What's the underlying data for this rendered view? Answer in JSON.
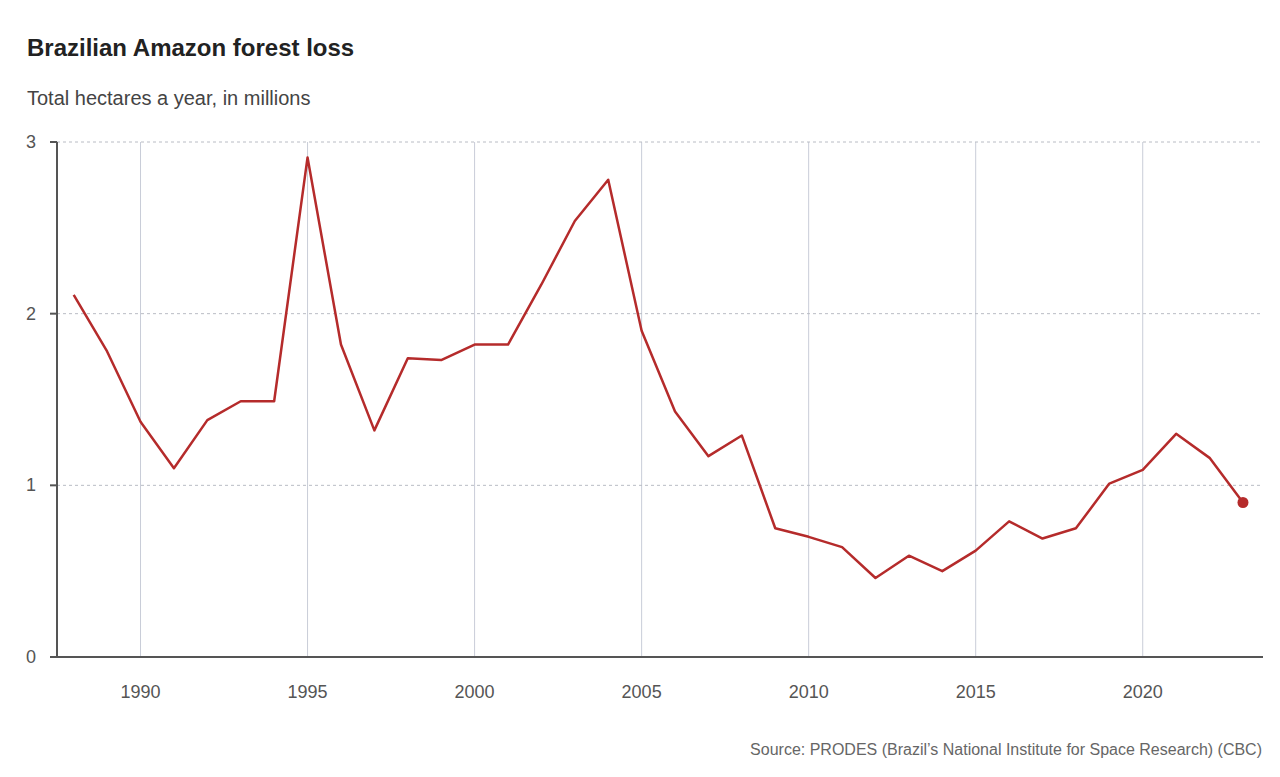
{
  "chart_data": {
    "type": "line",
    "title": "Brazilian Amazon forest loss",
    "subtitle": "Total hectares a year, in millions",
    "source": "Source: PRODES (Brazil’s National Institute for Space Research) (CBC)",
    "x": [
      1988,
      1989,
      1990,
      1991,
      1992,
      1993,
      1994,
      1995,
      1996,
      1997,
      1998,
      1999,
      2000,
      2001,
      2002,
      2003,
      2004,
      2005,
      2006,
      2007,
      2008,
      2009,
      2010,
      2011,
      2012,
      2013,
      2014,
      2015,
      2016,
      2017,
      2018,
      2019,
      2020,
      2021,
      2022,
      2023
    ],
    "values": [
      2.11,
      1.78,
      1.37,
      1.1,
      1.38,
      1.49,
      1.49,
      2.91,
      1.82,
      1.32,
      1.74,
      1.73,
      1.82,
      1.82,
      2.17,
      2.54,
      2.78,
      1.9,
      1.43,
      1.17,
      1.29,
      0.75,
      0.7,
      0.64,
      0.46,
      0.59,
      0.5,
      0.62,
      0.79,
      0.69,
      0.75,
      1.01,
      1.09,
      1.3,
      1.16,
      0.9
    ],
    "color": "#b52b2b",
    "marker": "end",
    "xlim": [
      1987.5,
      2023.6
    ],
    "xticks": [
      1990,
      1995,
      2000,
      2005,
      2010,
      2015,
      2020
    ],
    "ylim": [
      0,
      3
    ],
    "yticks": [
      0,
      1,
      2,
      3
    ],
    "grid": true
  }
}
